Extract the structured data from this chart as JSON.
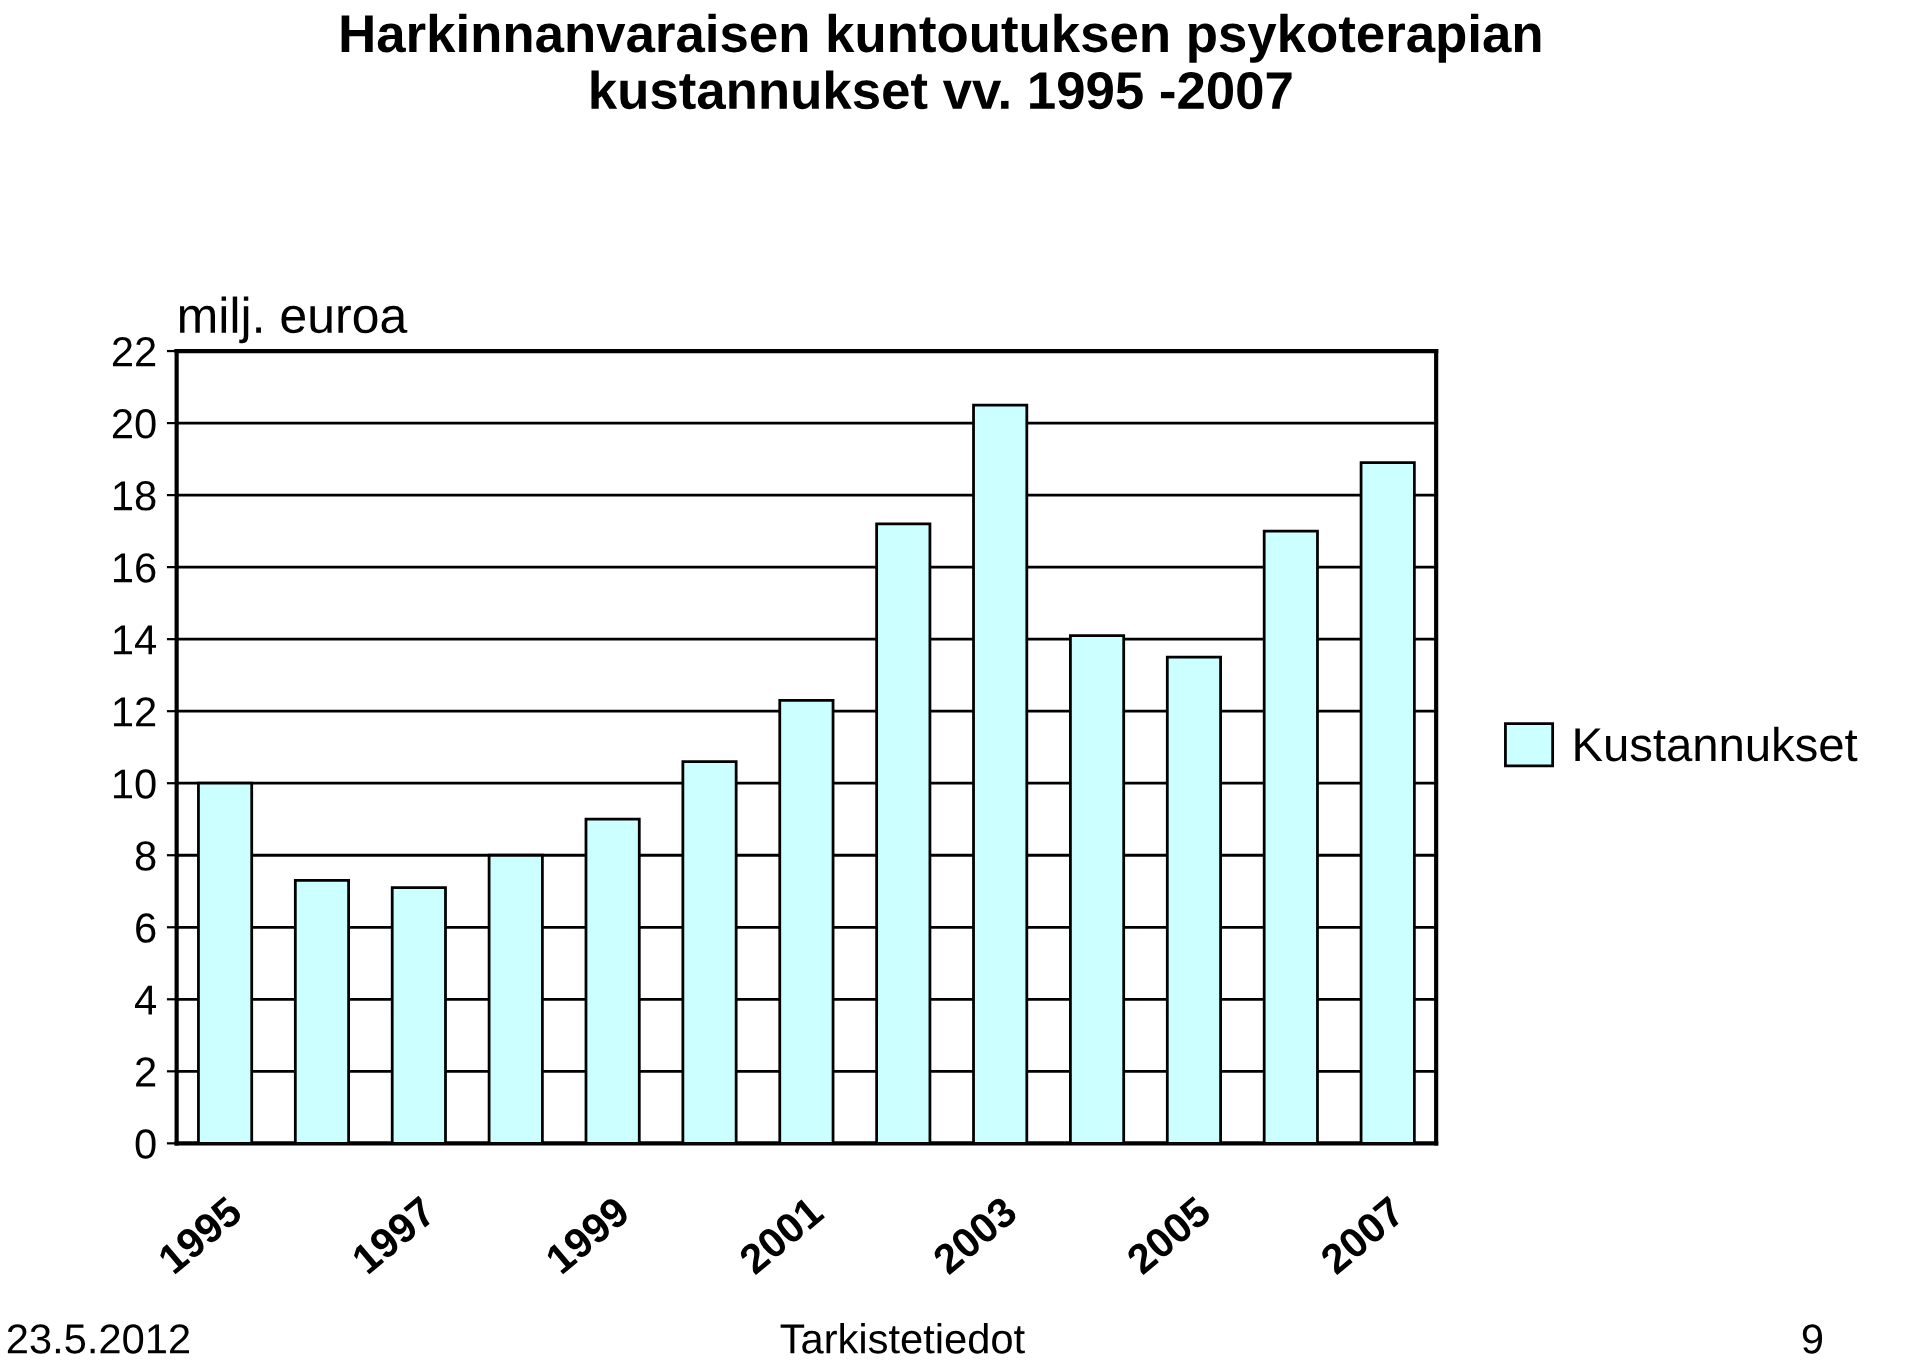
{
  "chart_data": {
    "type": "bar",
    "title": "Harkinnanvaraisen kuntoutuksen psykoterapian\nkustannukset vv. 1995 -2007",
    "ylabel": "milj. euroa",
    "categories": [
      "1995",
      null,
      "1997",
      null,
      "1999",
      null,
      "2001",
      null,
      "2003",
      null,
      "2005",
      null,
      "2007"
    ],
    "series": [
      {
        "name": "Kustannukset",
        "color": "#ccffff",
        "values": [
          10.0,
          7.3,
          7.1,
          8.0,
          9.0,
          10.6,
          12.3,
          17.2,
          20.5,
          14.1,
          13.5,
          17.0,
          18.9
        ]
      }
    ],
    "ylim": [
      0,
      22
    ],
    "yticks": [
      0,
      2,
      4,
      6,
      8,
      10,
      12,
      14,
      16,
      18,
      20,
      22
    ],
    "grid": "y",
    "legend": "right",
    "annotations": [
      "23.5.2012",
      "Tarkistetiedot",
      "9"
    ]
  }
}
